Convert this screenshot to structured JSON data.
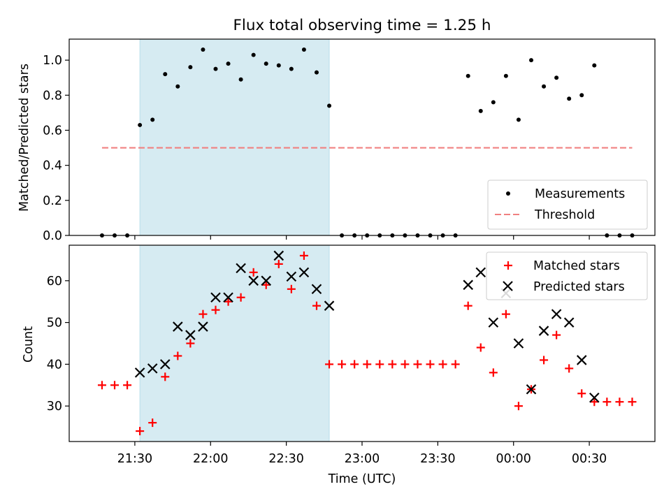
{
  "chart_data": [
    {
      "type": "scatter",
      "title": "Flux total observing time = 1.25 h",
      "xlabel": "",
      "ylabel": "Matched/Predicted stars",
      "ylim": [
        0,
        1.12
      ],
      "yticks": [
        "0.0",
        "0.2",
        "0.4",
        "0.6",
        "0.8",
        "1.0"
      ],
      "shaded_interval": [
        "21:32",
        "22:47"
      ],
      "legend_position": "lower-right",
      "series": [
        {
          "name": "Measurements",
          "marker": "dot",
          "color": "#000000",
          "x": [
            "21:17",
            "21:22",
            "21:27",
            "21:32",
            "21:37",
            "21:42",
            "21:47",
            "21:52",
            "21:57",
            "22:02",
            "22:07",
            "22:12",
            "22:17",
            "22:22",
            "22:27",
            "22:32",
            "22:37",
            "22:42",
            "22:47",
            "22:52",
            "22:57",
            "23:02",
            "23:07",
            "23:12",
            "23:17",
            "23:22",
            "23:27",
            "23:32",
            "23:37",
            "23:42",
            "23:47",
            "23:52",
            "23:57",
            "00:02",
            "00:07",
            "00:12",
            "00:17",
            "00:22",
            "00:27",
            "00:32",
            "00:37",
            "00:42",
            "00:47"
          ],
          "y": [
            0,
            0,
            0,
            0.63,
            0.66,
            0.92,
            0.85,
            0.96,
            1.06,
            0.95,
            0.98,
            0.89,
            1.03,
            0.98,
            0.97,
            0.95,
            1.06,
            0.93,
            0.74,
            0,
            0,
            0,
            0,
            0,
            0,
            0,
            0,
            0,
            0,
            0.91,
            0.71,
            0.76,
            0.91,
            0.66,
            1.0,
            0.85,
            0.9,
            0.78,
            0.8,
            0.97,
            0,
            0,
            0
          ]
        },
        {
          "name": "Threshold",
          "line": "dashed",
          "color": "#f08080",
          "x": [
            "21:17",
            "00:47"
          ],
          "y": [
            0.5,
            0.5
          ]
        }
      ]
    },
    {
      "type": "scatter",
      "xlabel": "Time (UTC)",
      "ylabel": "Count",
      "ylim": [
        21.5,
        68.5
      ],
      "yticks": [
        "30",
        "40",
        "50",
        "60"
      ],
      "xlim": [
        "21:04",
        "00:56"
      ],
      "xticks": [
        "21:30",
        "22:00",
        "22:30",
        "23:00",
        "23:30",
        "00:00",
        "00:30"
      ],
      "shaded_interval": [
        "21:32",
        "22:47"
      ],
      "legend_position": "upper-right",
      "series": [
        {
          "name": "Matched stars",
          "marker": "plus",
          "color": "#ff0000",
          "x": [
            "21:17",
            "21:22",
            "21:27",
            "21:32",
            "21:37",
            "21:42",
            "21:47",
            "21:52",
            "21:57",
            "22:02",
            "22:07",
            "22:12",
            "22:17",
            "22:22",
            "22:27",
            "22:32",
            "22:37",
            "22:42",
            "22:47",
            "22:52",
            "22:57",
            "23:02",
            "23:07",
            "23:12",
            "23:17",
            "23:22",
            "23:27",
            "23:32",
            "23:37",
            "23:42",
            "23:47",
            "23:52",
            "23:57",
            "00:02",
            "00:07",
            "00:12",
            "00:17",
            "00:22",
            "00:27",
            "00:32",
            "00:37",
            "00:42",
            "00:47"
          ],
          "y": [
            35,
            35,
            35,
            24,
            26,
            37,
            42,
            45,
            52,
            53,
            55,
            56,
            62,
            59,
            64,
            58,
            66,
            54,
            40,
            40,
            40,
            40,
            40,
            40,
            40,
            40,
            40,
            40,
            40,
            54,
            44,
            38,
            52,
            30,
            34,
            41,
            47,
            39,
            33,
            31,
            31,
            31,
            31
          ]
        },
        {
          "name": "Predicted stars",
          "marker": "x",
          "color": "#000000",
          "x": [
            "21:32",
            "21:37",
            "21:42",
            "21:47",
            "21:52",
            "21:57",
            "22:02",
            "22:07",
            "22:12",
            "22:17",
            "22:22",
            "22:27",
            "22:32",
            "22:37",
            "22:42",
            "22:47",
            "23:42",
            "23:47",
            "23:52",
            "23:57",
            "00:02",
            "00:07",
            "00:12",
            "00:17",
            "00:22",
            "00:27",
            "00:32"
          ],
          "y": [
            38,
            39,
            40,
            49,
            47,
            49,
            56,
            56,
            63,
            60,
            60,
            66,
            61,
            62,
            58,
            54,
            59,
            62,
            50,
            57,
            45,
            34,
            48,
            52,
            50,
            41,
            32
          ]
        }
      ]
    }
  ]
}
